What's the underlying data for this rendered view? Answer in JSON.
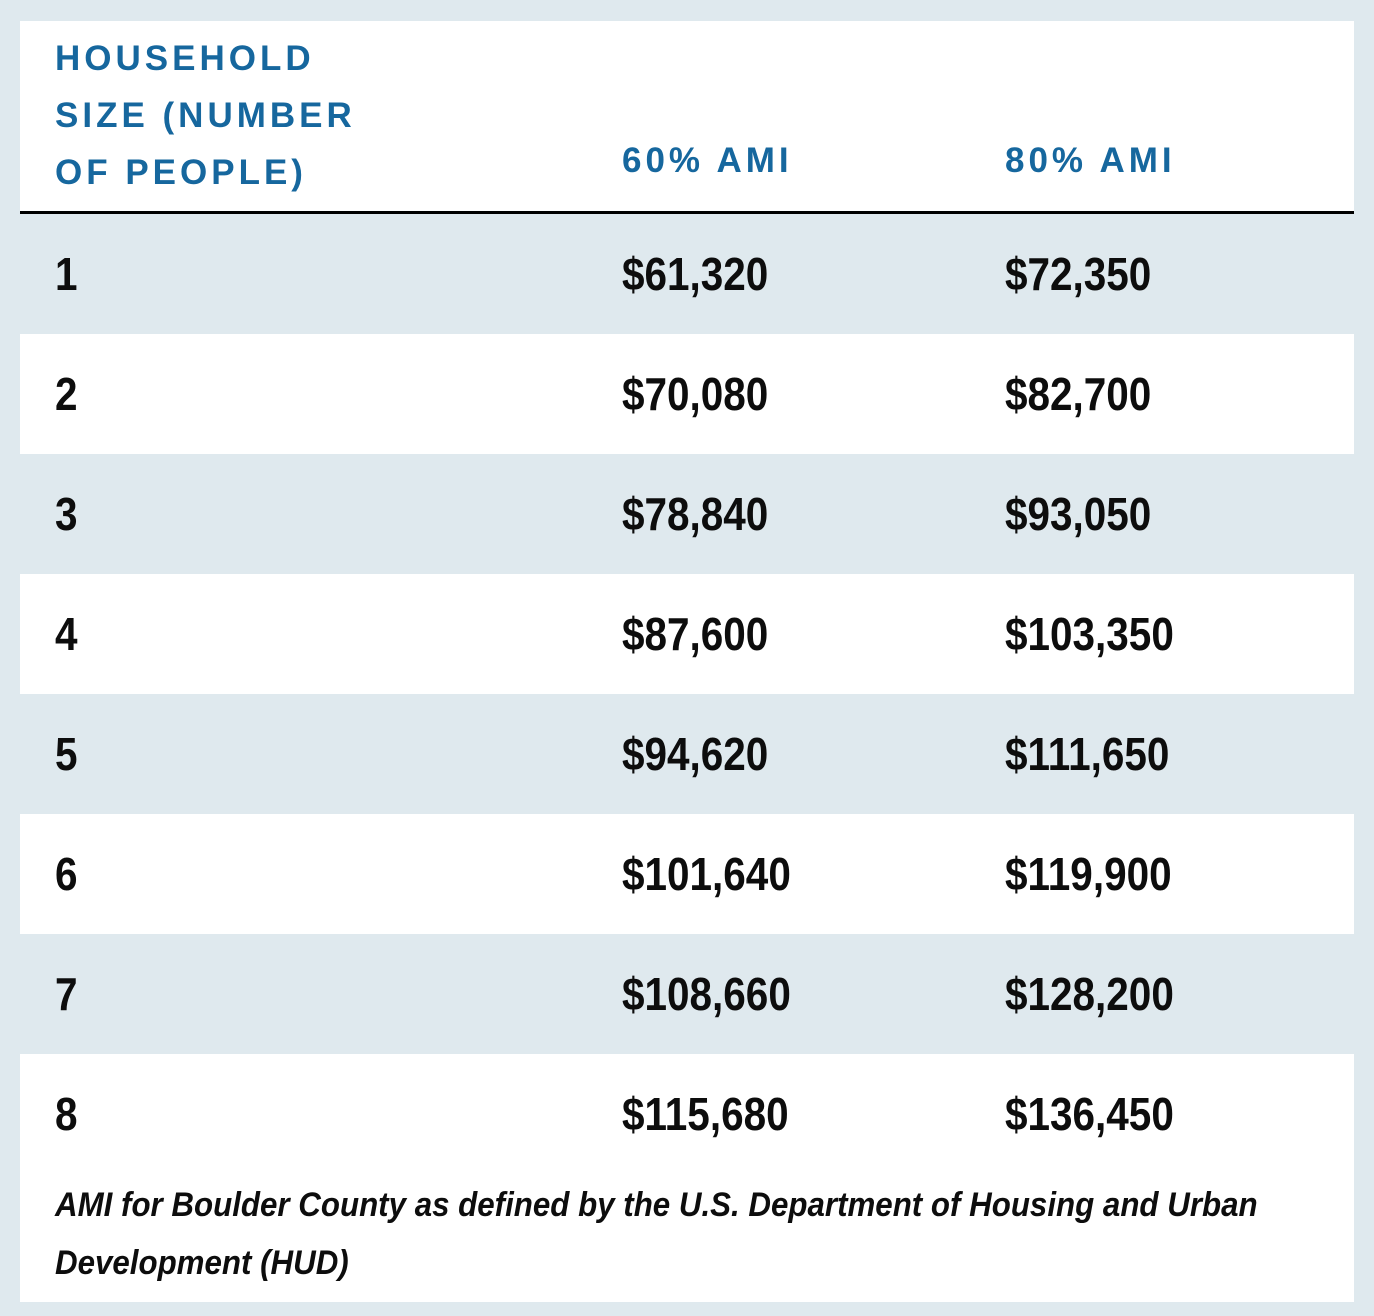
{
  "table": {
    "header": {
      "col1_lines": [
        "HOUSEHOLD",
        "SIZE (NUMBER",
        "OF PEOPLE)"
      ],
      "col2": "60% AMI",
      "col3": "80% AMI"
    },
    "rows": [
      {
        "size": "1",
        "ami60": "$61,320",
        "ami80": "$72,350"
      },
      {
        "size": "2",
        "ami60": "$70,080",
        "ami80": "$82,700"
      },
      {
        "size": "3",
        "ami60": "$78,840",
        "ami80": "$93,050"
      },
      {
        "size": "4",
        "ami60": "$87,600",
        "ami80": "$103,350"
      },
      {
        "size": "5",
        "ami60": "$94,620",
        "ami80": "$111,650"
      },
      {
        "size": "6",
        "ami60": "$101,640",
        "ami80": "$119,900"
      },
      {
        "size": "7",
        "ami60": "$108,660",
        "ami80": "$128,200"
      },
      {
        "size": "8",
        "ami60": "$115,680",
        "ami80": "$136,450"
      }
    ],
    "note_lines": [
      "AMI for Boulder County as defined by the U.S. Department of Housing and Urban",
      "Development (HUD)"
    ]
  },
  "colors": {
    "page_background": "#dfe9ee",
    "header_text_blue": "#16679e",
    "row_stripe_white": "#ffffff",
    "value_text": "#0d0d0d",
    "divider": "#000000"
  },
  "chart_data": {
    "type": "table",
    "title": "",
    "columns": [
      "Household size (number of people)",
      "60% AMI",
      "80% AMI"
    ],
    "rows": [
      [
        1,
        "$61,320",
        "$72,350"
      ],
      [
        2,
        "$70,080",
        "$82,700"
      ],
      [
        3,
        "$78,840",
        "$93,050"
      ],
      [
        4,
        "$87,600",
        "$103,350"
      ],
      [
        5,
        "$94,620",
        "$111,650"
      ],
      [
        6,
        "$101,640",
        "$119,900"
      ],
      [
        7,
        "$108,660",
        "$128,200"
      ],
      [
        8,
        "$115,680",
        "$136,450"
      ]
    ],
    "note": "AMI for Boulder County as defined by the U.S. Department of Housing and Urban Development (HUD)"
  }
}
